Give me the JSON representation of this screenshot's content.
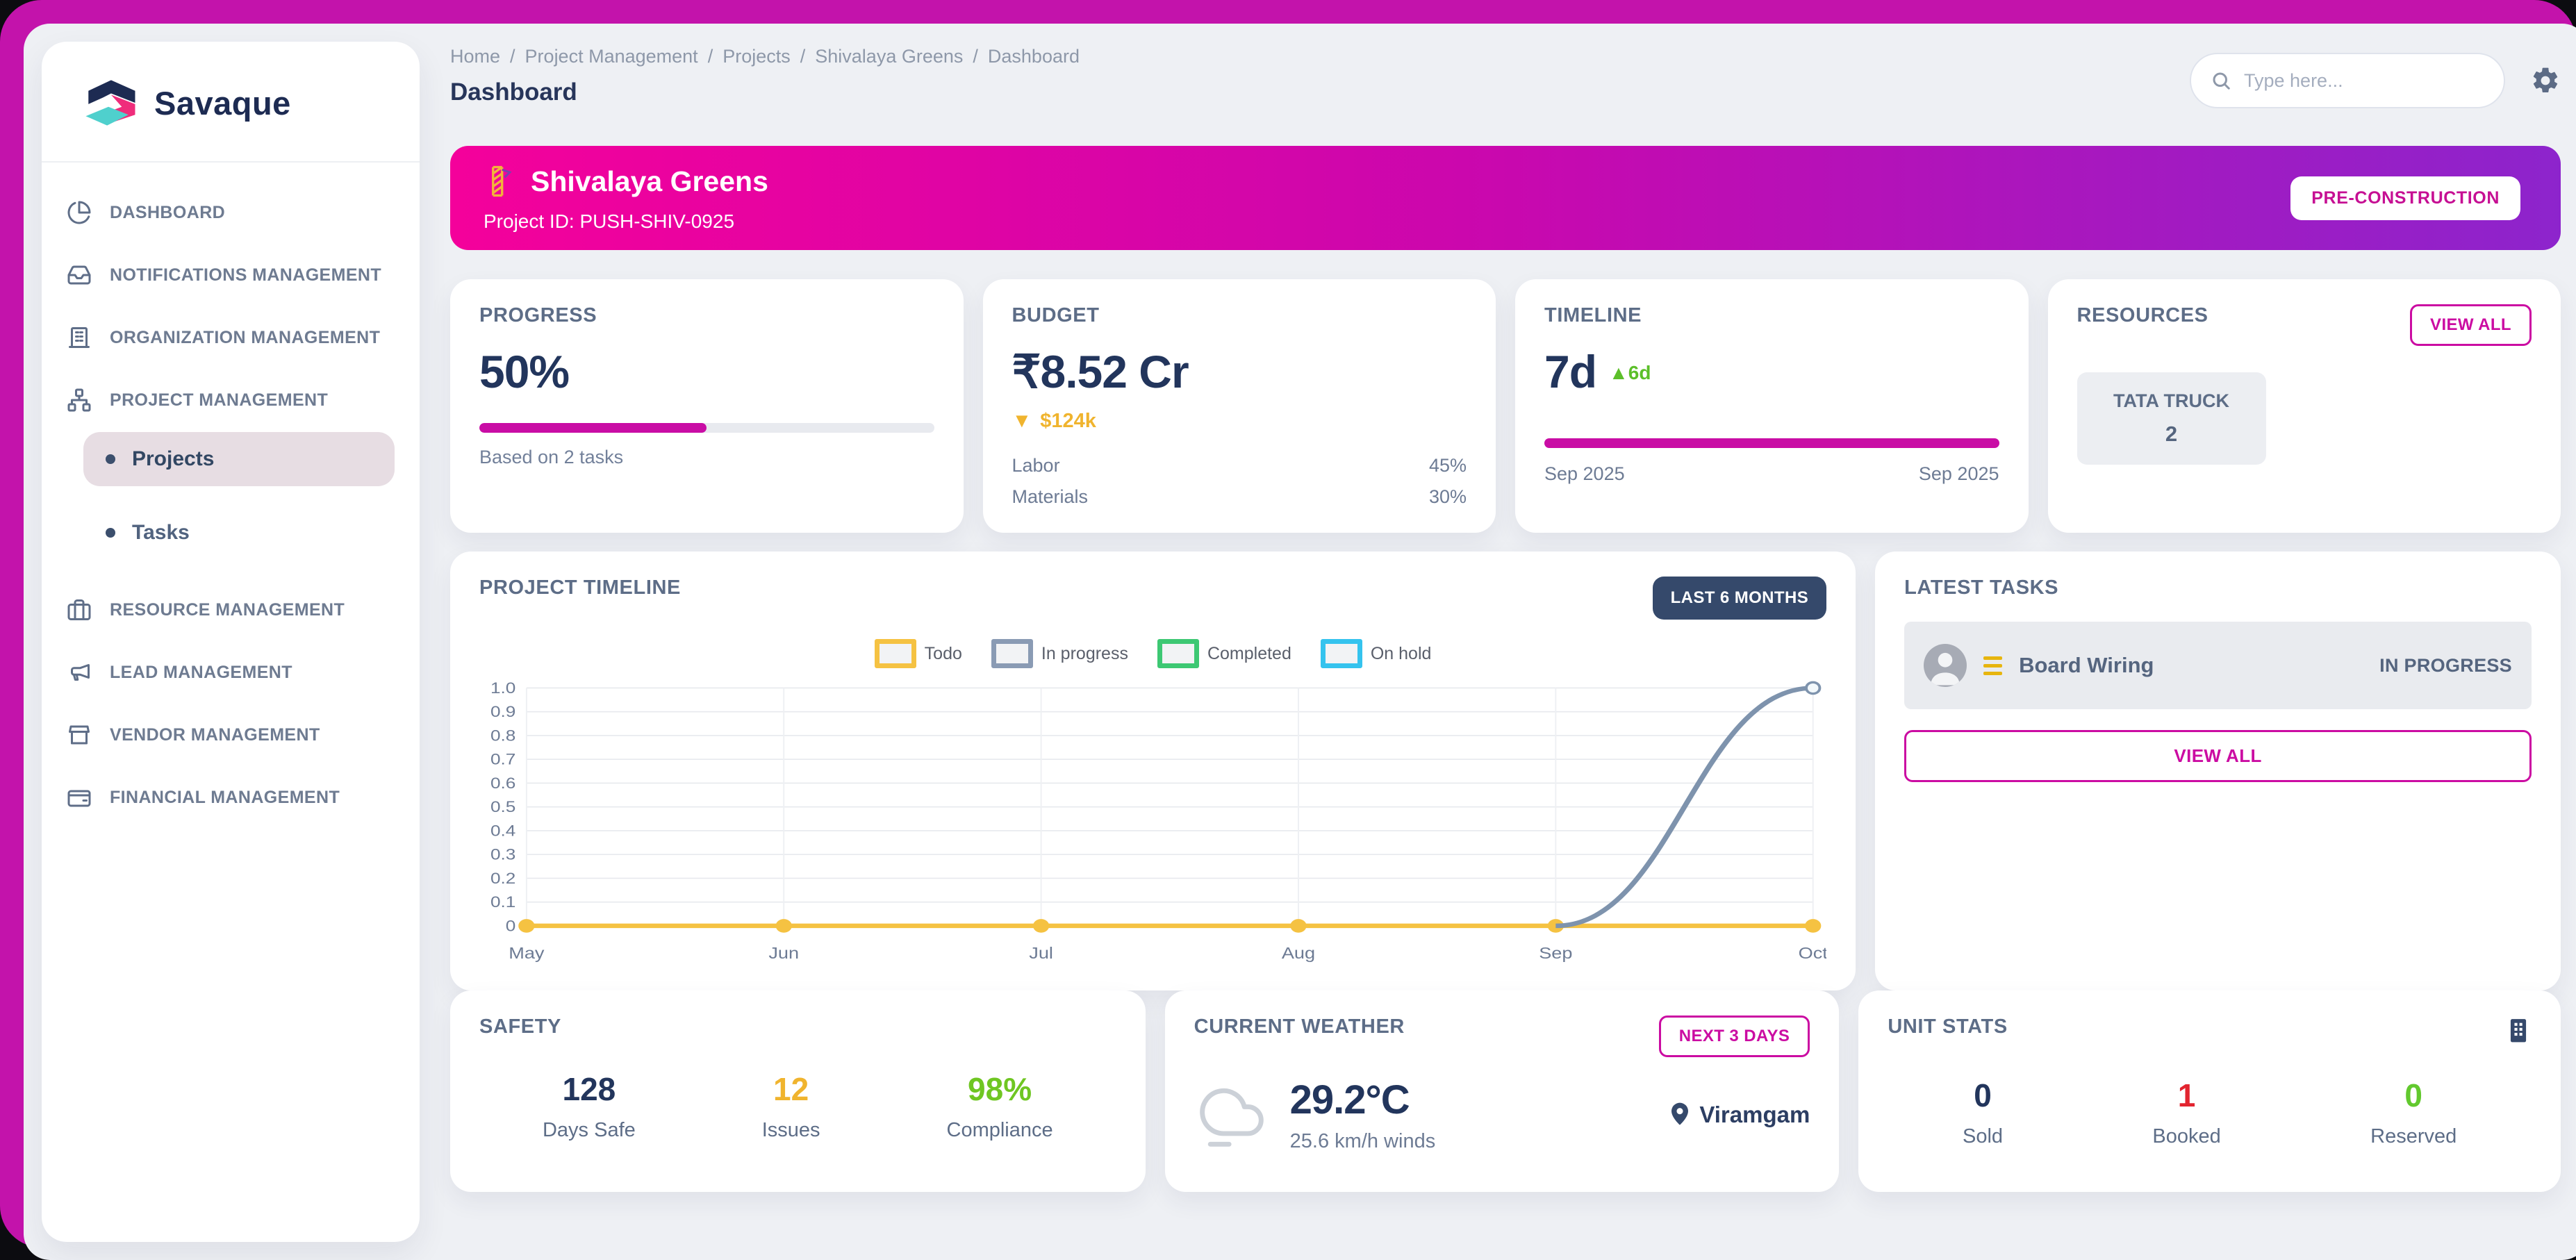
{
  "sidebar": {
    "brand": "Savaque",
    "items": [
      {
        "label": "DASHBOARD",
        "icon": "dashboard-icon"
      },
      {
        "label": "NOTIFICATIONS MANAGEMENT",
        "icon": "inbox-icon"
      },
      {
        "label": "ORGANIZATION MANAGEMENT",
        "icon": "building-icon"
      },
      {
        "label": "PROJECT MANAGEMENT",
        "icon": "hierarchy-icon"
      },
      {
        "label": "RESOURCE MANAGEMENT",
        "icon": "briefcase-icon"
      },
      {
        "label": "LEAD MANAGEMENT",
        "icon": "megaphone-icon"
      },
      {
        "label": "VENDOR MANAGEMENT",
        "icon": "storefront-icon"
      },
      {
        "label": "FINANCIAL MANAGEMENT",
        "icon": "wallet-icon"
      }
    ],
    "sub_items": [
      {
        "label": "Projects",
        "active": true
      },
      {
        "label": "Tasks",
        "active": false
      }
    ]
  },
  "header": {
    "breadcrumb": [
      "Home",
      "Project Management",
      "Projects",
      "Shivalaya Greens",
      "Dashboard"
    ],
    "title": "Dashboard",
    "search_placeholder": "Type here..."
  },
  "banner": {
    "icon": "construction-crane-icon",
    "title": "Shivalaya Greens",
    "project_id": "Project ID: PUSH-SHIV-0925",
    "status_badge": "PRE-CONSTRUCTION"
  },
  "cards": {
    "progress": {
      "label": "PROGRESS",
      "value": "50%",
      "percent": 50,
      "caption": "Based on 2 tasks"
    },
    "budget": {
      "label": "BUDGET",
      "value": "₹8.52 Cr",
      "delta_icon": "▼",
      "delta": "$124k",
      "rows": [
        {
          "name": "Labor",
          "value": "45%"
        },
        {
          "name": "Materials",
          "value": "30%"
        }
      ]
    },
    "timeline": {
      "label": "TIMELINE",
      "value": "7d",
      "delta_icon": "▲",
      "delta": "6d",
      "start": "Sep 2025",
      "end": "Sep 2025"
    },
    "resources": {
      "label": "RESOURCES",
      "view_all": "VIEW ALL",
      "chips": [
        {
          "name": "TATA TRUCK",
          "count": "2"
        }
      ]
    }
  },
  "project_timeline": {
    "range_badge": "LAST 6 MONTHS"
  },
  "chart_data": {
    "type": "line",
    "title": "PROJECT TIMELINE",
    "x": [
      "May",
      "Jun",
      "Jul",
      "Aug",
      "Sep",
      "Oct"
    ],
    "xlabel": "",
    "ylabel": "",
    "ylim": [
      0,
      1.0
    ],
    "ytick_step": 0.1,
    "grid": true,
    "legend_position": "top-center",
    "series": [
      {
        "name": "Todo",
        "color": "#F5C242",
        "values": [
          0,
          0,
          0,
          0,
          0,
          0
        ],
        "markers": "all"
      },
      {
        "name": "In progress",
        "color": "#8A9BB4",
        "line_color": "#7E93AD",
        "values": [
          null,
          null,
          null,
          null,
          0,
          1.0
        ],
        "markers": "end"
      },
      {
        "name": "Completed",
        "color": "#3DC873",
        "values": []
      },
      {
        "name": "On hold",
        "color": "#35C3EE",
        "values": []
      }
    ]
  },
  "latest_tasks": {
    "title": "LATEST TASKS",
    "view_all": "VIEW ALL",
    "tasks": [
      {
        "name": "Board Wiring",
        "status": "IN PROGRESS"
      }
    ]
  },
  "safety": {
    "title": "SAFETY",
    "stats": [
      {
        "value": "128",
        "label": "Days Safe",
        "color": "#22355c"
      },
      {
        "value": "12",
        "label": "Issues",
        "color": "#f0b42e"
      },
      {
        "value": "98%",
        "label": "Compliance",
        "color": "#6fc622"
      }
    ]
  },
  "weather": {
    "title": "CURRENT WEATHER",
    "button": "NEXT 3 DAYS",
    "icon": "cloud-fog-icon",
    "temperature": "29.2°C",
    "wind": "25.6 km/h winds",
    "location_icon": "map-pin-icon",
    "location": "Viramgam"
  },
  "unit_stats": {
    "title": "UNIT STATS",
    "icon": "building-icon",
    "stats": [
      {
        "value": "0",
        "label": "Sold",
        "color": "#22355c"
      },
      {
        "value": "1",
        "label": "Booked",
        "color": "#e2242f"
      },
      {
        "value": "0",
        "label": "Reserved",
        "color": "#62c92e"
      }
    ]
  },
  "theme": {
    "accent_magenta": "#CB0CA2",
    "frame": "#C313AB",
    "banner_gradient": [
      "#F4019B",
      "#8D24CC"
    ],
    "dark_badge": "#35496B",
    "navy_text": "#22355C",
    "gold": "#F0B42E",
    "green": "#6FC622",
    "red": "#E2242F",
    "page_bg": "#EEF0F4"
  }
}
